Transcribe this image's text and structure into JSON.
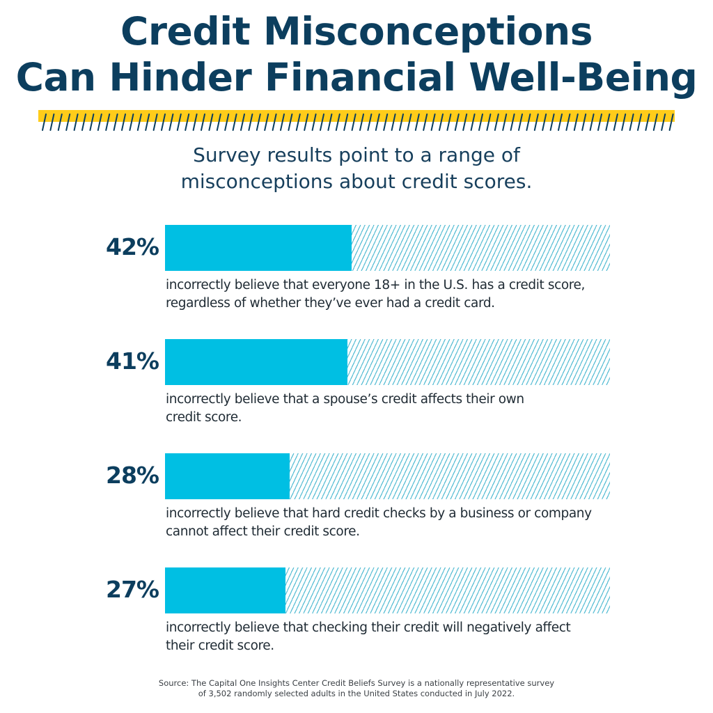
{
  "header": {
    "title_line1": "Credit Misconceptions",
    "title_line2": "Can Hinder Financial Well-Being",
    "accent_color": "#ffcc1a",
    "title_color": "#0c3e5e"
  },
  "subtitle": {
    "line1": "Survey results point to a range of",
    "line2": "misconceptions about credit scores."
  },
  "items": [
    {
      "value": 42,
      "label": "42%",
      "desc_line1": "incorrectly believe that everyone 18+ in the U.S. has a credit score,",
      "desc_line2": "regardless of whether they’ve ever had a credit card."
    },
    {
      "value": 41,
      "label": "41%",
      "desc_line1": "incorrectly believe that a spouse’s credit affects their own",
      "desc_line2": "credit score."
    },
    {
      "value": 28,
      "label": "28%",
      "desc_line1": "incorrectly believe that hard credit checks by a business or company",
      "desc_line2": "cannot affect their credit score."
    },
    {
      "value": 27,
      "label": "27%",
      "desc_line1": "incorrectly believe that checking their credit will negatively affect",
      "desc_line2": "their credit score."
    }
  ],
  "source": {
    "line1": "Source: The Capital One Insights Center Credit Beliefs Survey is a nationally representative survey",
    "line2": "of 3,502 randomly selected adults in the United States conducted in July 2022."
  },
  "chart_data": {
    "type": "bar",
    "orientation": "horizontal",
    "title": "Credit Misconceptions Can Hinder Financial Well-Being",
    "subtitle": "Survey results point to a range of misconceptions about credit scores.",
    "categories": [
      "incorrectly believe that everyone 18+ in the U.S. has a credit score, regardless of whether they’ve ever had a credit card.",
      "incorrectly believe that a spouse’s credit affects their own credit score.",
      "incorrectly believe that hard credit checks by a business or company cannot affect their credit score.",
      "incorrectly believe that checking their credit will negatively affect their credit score."
    ],
    "values": [
      42,
      41,
      28,
      27
    ],
    "unit": "%",
    "xlim": [
      0,
      100
    ],
    "xlabel": "",
    "ylabel": "",
    "grid": false,
    "legend": "none",
    "colors": {
      "fill": "#00bfe3",
      "remainder_hatch": "#5fc0d6"
    },
    "source": "Source: The Capital One Insights Center Credit Beliefs Survey is a nationally representative survey of 3,502 randomly selected adults in the United States conducted in July 2022."
  }
}
